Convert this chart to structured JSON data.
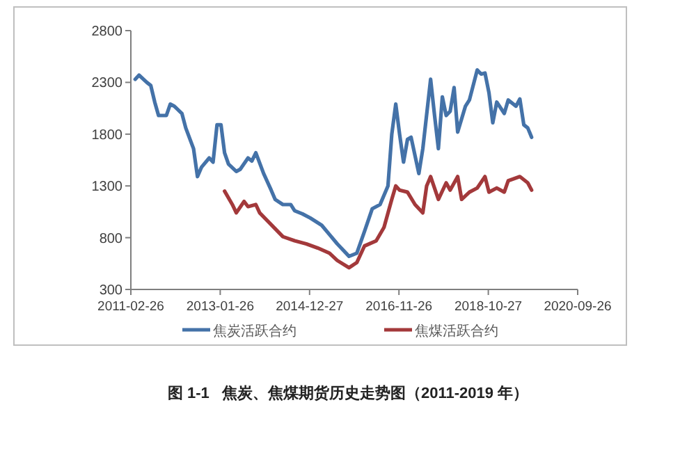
{
  "chart_data": {
    "type": "line",
    "xlim": [
      "2011-02-26",
      "2020-09-26"
    ],
    "xticks": [
      "2011-02-26",
      "2013-01-26",
      "2014-12-27",
      "2016-11-26",
      "2018-10-27",
      "2020-09-26"
    ],
    "ylim": [
      300,
      2800
    ],
    "yticks": [
      300,
      800,
      1300,
      1800,
      2300,
      2800
    ],
    "legend": "bottom",
    "line_style": "solid",
    "marker": "none",
    "series": [
      {
        "name": "焦炭活跃合约",
        "color": "#4472a8",
        "x": [
          "2011-04",
          "2011-05",
          "2011-07",
          "2011-08",
          "2011-09",
          "2011-10",
          "2011-12",
          "2012-01",
          "2012-02",
          "2012-04",
          "2012-05",
          "2012-07",
          "2012-08",
          "2012-09",
          "2012-11",
          "2012-12",
          "2013-01",
          "2013-02",
          "2013-03",
          "2013-04",
          "2013-06",
          "2013-07",
          "2013-09",
          "2013-10",
          "2013-11",
          "2014-01",
          "2014-03",
          "2014-04",
          "2014-06",
          "2014-08",
          "2014-09",
          "2014-11",
          "2015-01",
          "2015-04",
          "2015-06",
          "2015-08",
          "2015-11",
          "2016-01",
          "2016-03",
          "2016-05",
          "2016-07",
          "2016-09",
          "2016-10",
          "2016-11",
          "2016-12",
          "2017-01",
          "2017-02",
          "2017-03",
          "2017-05",
          "2017-06",
          "2017-08",
          "2017-09",
          "2017-10",
          "2017-11",
          "2017-12",
          "2018-01",
          "2018-02",
          "2018-03",
          "2018-05",
          "2018-06",
          "2018-08",
          "2018-09",
          "2018-10",
          "2018-11",
          "2018-12",
          "2019-01",
          "2019-03",
          "2019-04",
          "2019-06",
          "2019-07",
          "2019-08",
          "2019-09",
          "2019-10"
        ],
        "values": [
          2330,
          2370,
          2300,
          2270,
          2110,
          1980,
          1980,
          2090,
          2070,
          2000,
          1860,
          1660,
          1390,
          1480,
          1570,
          1530,
          1890,
          1890,
          1620,
          1510,
          1440,
          1460,
          1570,
          1540,
          1620,
          1420,
          1260,
          1170,
          1120,
          1120,
          1060,
          1030,
          990,
          920,
          830,
          740,
          620,
          650,
          860,
          1080,
          1120,
          1300,
          1800,
          2090,
          1800,
          1530,
          1750,
          1770,
          1420,
          1660,
          2330,
          1980,
          1660,
          2160,
          1980,
          2020,
          2250,
          1820,
          2070,
          2130,
          2420,
          2380,
          2390,
          2200,
          1910,
          2110,
          2000,
          2130,
          2070,
          2140,
          1890,
          1860,
          1770
        ]
      },
      {
        "name": "焦煤活跃合约",
        "color": "#a3393b",
        "x": [
          "2013-03",
          "2013-05",
          "2013-06",
          "2013-08",
          "2013-09",
          "2013-11",
          "2013-12",
          "2014-06",
          "2014-09",
          "2014-12",
          "2015-03",
          "2015-06",
          "2015-08",
          "2015-11",
          "2016-01",
          "2016-03",
          "2016-06",
          "2016-08",
          "2016-10",
          "2016-11",
          "2016-12",
          "2017-02",
          "2017-04",
          "2017-06",
          "2017-07",
          "2017-08",
          "2017-10",
          "2017-12",
          "2018-01",
          "2018-03",
          "2018-04",
          "2018-06",
          "2018-08",
          "2018-10",
          "2018-11",
          "2019-01",
          "2019-03",
          "2019-04",
          "2019-07",
          "2019-09",
          "2019-10"
        ],
        "values": [
          1250,
          1120,
          1040,
          1150,
          1100,
          1120,
          1040,
          810,
          770,
          740,
          700,
          650,
          580,
          510,
          560,
          720,
          770,
          900,
          1170,
          1300,
          1260,
          1240,
          1120,
          1040,
          1300,
          1390,
          1170,
          1330,
          1260,
          1390,
          1170,
          1240,
          1280,
          1390,
          1240,
          1280,
          1240,
          1350,
          1390,
          1330,
          1260
        ]
      }
    ],
    "annotations": [
      "图 1-1   焦炭、焦煤期货历史走势图（2011-2019 年）"
    ]
  }
}
